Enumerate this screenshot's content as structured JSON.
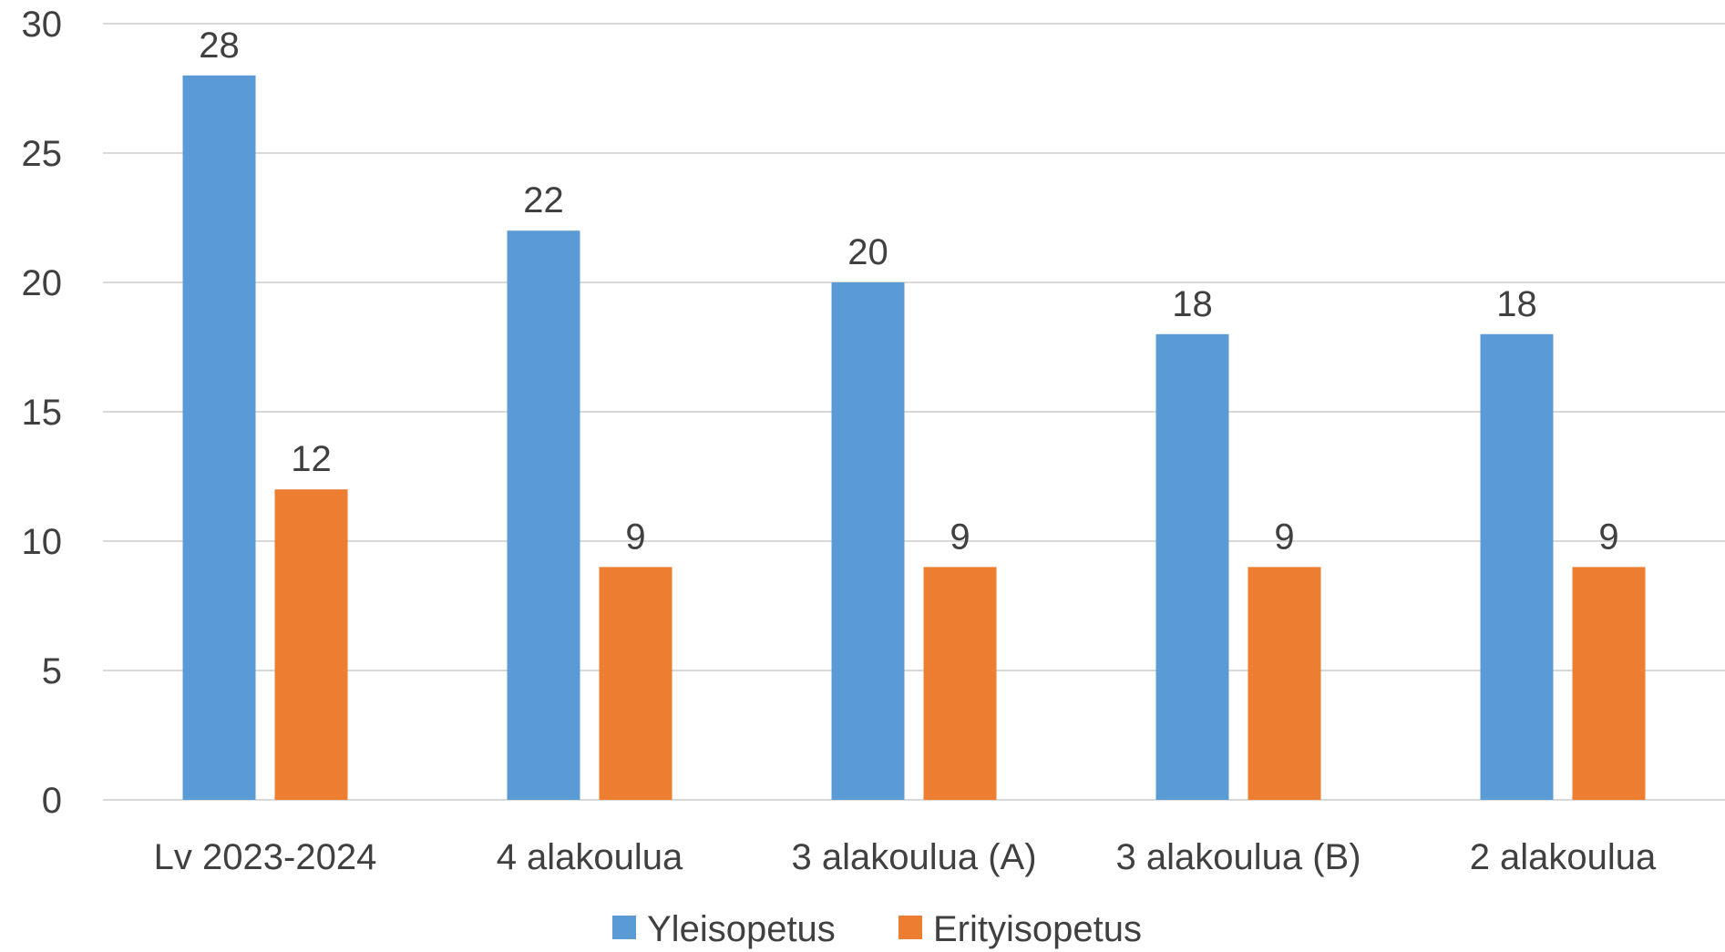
{
  "chart_data": {
    "type": "bar",
    "title": "",
    "xlabel": "",
    "ylabel": "",
    "ylim": [
      0,
      30
    ],
    "yticks": [
      0,
      5,
      10,
      15,
      20,
      25,
      30
    ],
    "grid": true,
    "legend_position": "bottom",
    "show_data_labels": true,
    "categories": [
      "Lv 2023-2024",
      "4 alakoulua",
      "3 alakoulua (A)",
      "3 alakoulua (B)",
      "2 alakoulua"
    ],
    "series": [
      {
        "name": "Yleisopetus",
        "color": "#5b9bd5",
        "values": [
          28,
          22,
          20,
          18,
          18
        ]
      },
      {
        "name": "Erityisopetus",
        "color": "#ed7d31",
        "values": [
          12,
          9,
          9,
          9,
          9
        ]
      }
    ]
  }
}
